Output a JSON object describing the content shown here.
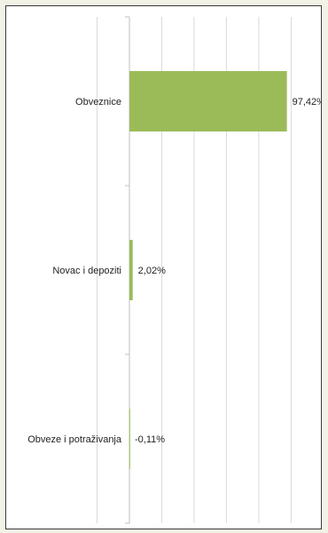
{
  "chart_data": {
    "type": "bar",
    "orientation": "horizontal",
    "categories": [
      "Obveznice",
      "Novac i depoziti",
      "Obveze i potraživanja"
    ],
    "values": [
      97.42,
      2.02,
      -0.11
    ],
    "value_labels": [
      "97,42%",
      "2,02%",
      "-0,11%"
    ],
    "title": "",
    "xlabel": "",
    "ylabel": "",
    "xlim": [
      -20,
      100
    ],
    "grid": true,
    "legend": "none",
    "bar_color": "#9bbb59"
  }
}
